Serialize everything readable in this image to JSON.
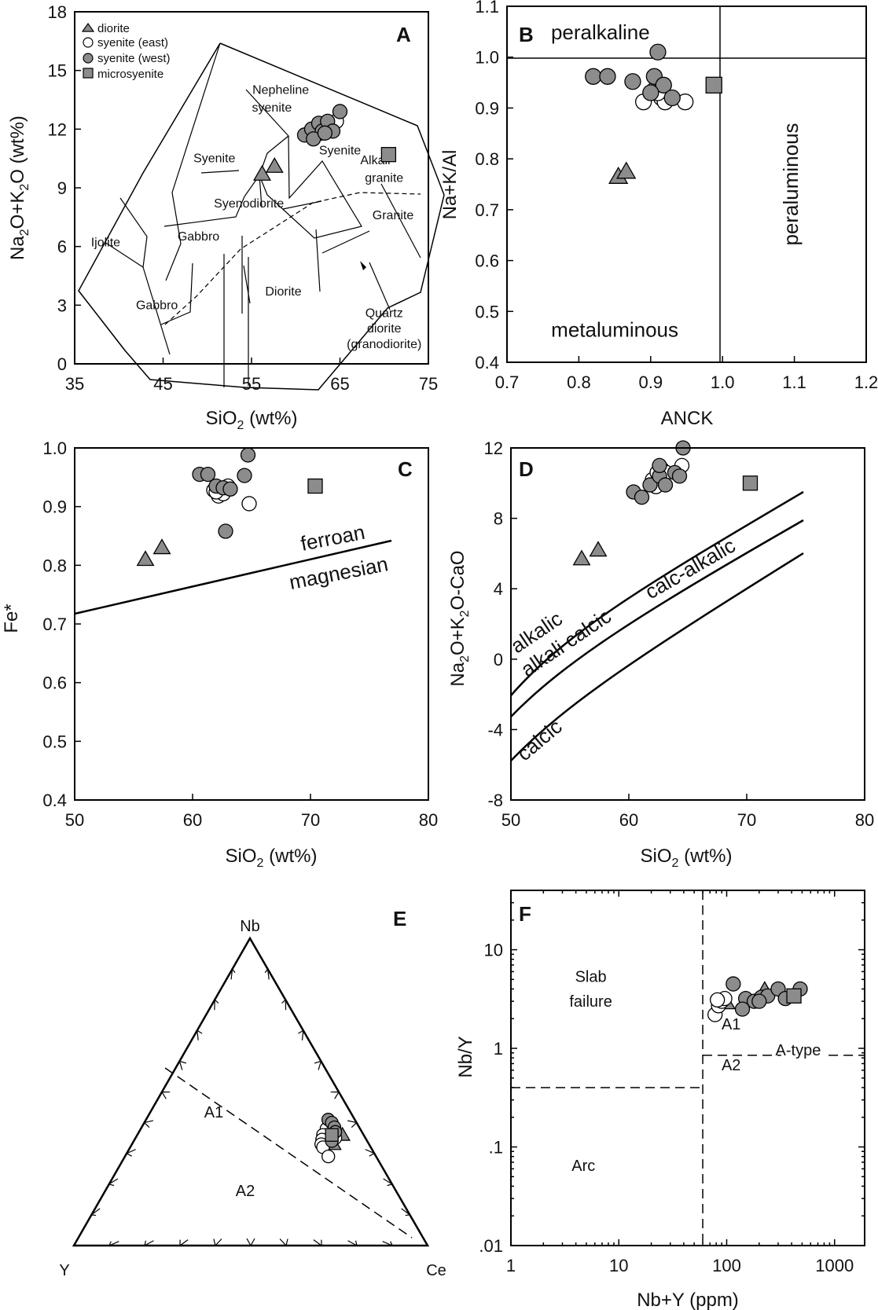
{
  "legend": {
    "entries": [
      {
        "name": "diorite",
        "marker": "triangle",
        "fill": "#8c8c8c"
      },
      {
        "name": "syenite (east)",
        "marker": "circle",
        "fill": "#ffffff"
      },
      {
        "name": "syenite (west)",
        "marker": "circle",
        "fill": "#8c8c8c"
      },
      {
        "name": "microsyenite",
        "marker": "square",
        "fill": "#8c8c8c"
      }
    ]
  },
  "colors": {
    "marker_fill": "#8c8c8c",
    "marker_open": "#ffffff",
    "line": "#000000"
  },
  "chart_data": [
    {
      "panel": "A",
      "type": "scatter",
      "xlabel": "SiO₂ (wt%)",
      "ylabel": "Na₂O+K₂O (wt%)",
      "xlim": [
        35,
        75
      ],
      "ylim": [
        0,
        18
      ],
      "xticks": [
        35,
        45,
        55,
        65,
        75
      ],
      "yticks": [
        0,
        3,
        6,
        9,
        12,
        15,
        18
      ],
      "field_labels": [
        {
          "text": "Ijolite",
          "x": 38.5,
          "y": 6.0
        },
        {
          "text": "Gabbro",
          "x": 44.3,
          "y": 2.8
        },
        {
          "text": "Gabbro",
          "x": 49.0,
          "y": 6.3
        },
        {
          "text": "Syenodiorite",
          "x": 54.7,
          "y": 8.0
        },
        {
          "text": "Syenite",
          "x": 50.8,
          "y": 10.3
        },
        {
          "text": "Nepheline",
          "x": 58.3,
          "y": 13.8
        },
        {
          "text": "syenite",
          "x": 57.3,
          "y": 12.9
        },
        {
          "text": "Syenite",
          "x": 65.0,
          "y": 10.7
        },
        {
          "text": "Alkali",
          "x": 69.0,
          "y": 10.2
        },
        {
          "text": "granite",
          "x": 70.0,
          "y": 9.3
        },
        {
          "text": "Granite",
          "x": 71.0,
          "y": 7.4
        },
        {
          "text": "Diorite",
          "x": 58.6,
          "y": 3.5
        },
        {
          "text": "Quartz",
          "x": 70.0,
          "y": 2.4
        },
        {
          "text": "diorite",
          "x": 70.0,
          "y": 1.6
        },
        {
          "text": "(granodiorite)",
          "x": 70.0,
          "y": 0.8
        }
      ],
      "series": [
        {
          "name": "diorite",
          "x": [
            56.2,
            57.6
          ],
          "y": [
            9.7,
            10.1
          ]
        },
        {
          "name": "syenite (east)",
          "x": [
            62.5,
            63.2,
            64.0,
            64.6,
            62.9
          ],
          "y": [
            11.9,
            12.2,
            12.1,
            12.4,
            11.8
          ]
        },
        {
          "name": "syenite (west)",
          "x": [
            61.0,
            61.8,
            62.6,
            63.0,
            63.6,
            62.0,
            65.0,
            64.2,
            63.3
          ],
          "y": [
            11.7,
            12.0,
            12.3,
            11.9,
            12.4,
            11.5,
            12.9,
            11.9,
            11.8
          ]
        },
        {
          "name": "microsyenite",
          "x": [
            70.5
          ],
          "y": [
            10.7
          ]
        }
      ]
    },
    {
      "panel": "B",
      "type": "scatter",
      "xlabel": "ANCK",
      "ylabel": "Na+K/Al",
      "xlim": [
        0.7,
        1.2
      ],
      "ylim": [
        0.4,
        1.1
      ],
      "xticks": [
        0.7,
        0.8,
        0.9,
        1.0,
        1.1,
        1.2
      ],
      "yticks": [
        0.4,
        0.5,
        0.6,
        0.7,
        0.8,
        0.9,
        1.0,
        1.1
      ],
      "xtick_labels": [
        "0.7",
        "0.8",
        "0.9",
        "1.0",
        "1.1",
        "1.2"
      ],
      "ytick_labels": [
        "0.4",
        "0.5",
        "0.6",
        "0.7",
        "0.8",
        "0.9",
        "1.0",
        "1.1"
      ],
      "field_labels": [
        {
          "text": "peralkaline",
          "x": 0.83,
          "y": 1.035
        },
        {
          "text": "metaluminous",
          "x": 0.85,
          "y": 0.45
        },
        {
          "text": "peraluminous",
          "x": 1.105,
          "y": 0.75,
          "rotate": -90
        }
      ],
      "series": [
        {
          "name": "diorite",
          "x": [
            0.855,
            0.866
          ],
          "y": [
            0.765,
            0.775
          ]
        },
        {
          "name": "syenite (east)",
          "x": [
            0.89,
            0.905,
            0.915,
            0.92,
            0.948,
            0.91
          ],
          "y": [
            0.912,
            0.935,
            0.92,
            0.912,
            0.912,
            0.93
          ]
        },
        {
          "name": "syenite (west)",
          "x": [
            0.82,
            0.84,
            0.875,
            0.905,
            0.91,
            0.918,
            0.93,
            0.9
          ],
          "y": [
            0.962,
            0.962,
            0.952,
            0.962,
            1.01,
            0.945,
            0.92,
            0.93
          ]
        },
        {
          "name": "microsyenite",
          "x": [
            0.988
          ],
          "y": [
            0.945
          ]
        }
      ]
    },
    {
      "panel": "C",
      "type": "scatter",
      "xlabel": "SiO₂ (wt%)",
      "ylabel": "Fe*",
      "xlim": [
        50,
        80
      ],
      "ylim": [
        0.4,
        1.0
      ],
      "xticks": [
        50,
        60,
        70,
        80
      ],
      "yticks": [
        0.4,
        0.5,
        0.6,
        0.7,
        0.8,
        0.9,
        1.0
      ],
      "xtick_labels": [
        "50",
        "60",
        "70",
        "80"
      ],
      "ytick_labels": [
        "0.4",
        "0.5",
        "0.6",
        "0.7",
        "0.8",
        "0.9",
        "1.0"
      ],
      "field_labels": [
        {
          "text": "ferroan",
          "x": 72.0,
          "y": 0.835,
          "rotate": -11
        },
        {
          "text": "magnesian",
          "x": 72.5,
          "y": 0.775,
          "rotate": -11
        }
      ],
      "series": [
        {
          "name": "diorite",
          "x": [
            56.0,
            57.4
          ],
          "y": [
            0.81,
            0.83
          ]
        },
        {
          "name": "syenite (east)",
          "x": [
            61.8,
            62.2,
            62.6,
            63.0,
            64.8,
            62.0
          ],
          "y": [
            0.928,
            0.918,
            0.922,
            0.935,
            0.905,
            0.925
          ]
        },
        {
          "name": "syenite (west)",
          "x": [
            60.6,
            61.3,
            62.0,
            62.6,
            62.8,
            64.4,
            64.7,
            63.2
          ],
          "y": [
            0.955,
            0.955,
            0.935,
            0.932,
            0.858,
            0.953,
            0.988,
            0.93
          ]
        },
        {
          "name": "microsyenite",
          "x": [
            70.4
          ],
          "y": [
            0.935
          ]
        }
      ]
    },
    {
      "panel": "D",
      "type": "scatter",
      "xlabel": "SiO₂ (wt%)",
      "ylabel": "Na₂O+K₂O-CaO",
      "xlim": [
        50,
        80
      ],
      "ylim": [
        -8,
        12
      ],
      "xticks": [
        50,
        60,
        70,
        80
      ],
      "yticks": [
        -8,
        -4,
        0,
        4,
        8,
        12
      ],
      "xtick_labels": [
        "50",
        "60",
        "70",
        "80"
      ],
      "ytick_labels": [
        "-8",
        "-4",
        "0",
        "4",
        "8",
        "12"
      ],
      "field_labels": [
        {
          "text": "alkalic",
          "x": 52.5,
          "y": 1.2,
          "rotate": -34
        },
        {
          "text": "alkali calcic",
          "x": 55.0,
          "y": 0.6,
          "rotate": -34
        },
        {
          "text": "calcic",
          "x": 52.8,
          "y": -4.9,
          "rotate": -40
        },
        {
          "text": "calc-alkalic",
          "x": 65.5,
          "y": 4.8,
          "rotate": -30
        }
      ],
      "series": [
        {
          "name": "diorite",
          "x": [
            56.0,
            57.4
          ],
          "y": [
            5.7,
            6.2
          ]
        },
        {
          "name": "syenite (east)",
          "x": [
            62.0,
            62.4,
            62.8,
            63.2,
            64.5,
            62.3
          ],
          "y": [
            10.2,
            10.6,
            10.8,
            10.6,
            11.0,
            9.8
          ]
        },
        {
          "name": "syenite (west)",
          "x": [
            60.4,
            61.1,
            61.8,
            62.6,
            63.1,
            63.9,
            64.3,
            64.6,
            62.6
          ],
          "y": [
            9.5,
            9.2,
            9.9,
            10.4,
            9.9,
            10.6,
            10.4,
            12.0,
            11.0
          ]
        },
        {
          "name": "microsyenite",
          "x": [
            70.3
          ],
          "y": [
            10.0
          ]
        }
      ]
    },
    {
      "panel": "E",
      "type": "scatter",
      "vertices": [
        "Nb",
        "Y",
        "Ce"
      ],
      "field_labels": [
        {
          "text": "A1"
        },
        {
          "text": "A2"
        }
      ],
      "series": [
        {
          "name": "diorite",
          "Nb": [
            0.33,
            0.36
          ],
          "Ce": [
            0.57,
            0.58
          ]
        },
        {
          "name": "syenite (east)",
          "Nb": [
            0.38,
            0.36,
            0.345,
            0.33,
            0.32,
            0.29,
            0.35
          ],
          "Ce": [
            0.525,
            0.525,
            0.53,
            0.535,
            0.545,
            0.575,
            0.565
          ]
        },
        {
          "name": "syenite (west)",
          "Nb": [
            0.41,
            0.4,
            0.385,
            0.37,
            0.34
          ],
          "Ce": [
            0.515,
            0.53,
            0.545,
            0.555,
            0.56
          ]
        },
        {
          "name": "microsyenite",
          "Nb": [
            0.36
          ],
          "Ce": [
            0.55
          ]
        }
      ]
    },
    {
      "panel": "F",
      "type": "scatter",
      "xlabel": "Nb+Y (ppm)",
      "ylabel": "Nb/Y",
      "xscale": "log",
      "yscale": "log",
      "xlim": [
        1,
        1900
      ],
      "ylim": [
        0.01,
        40
      ],
      "xticks": [
        1,
        10,
        100,
        1000
      ],
      "yticks": [
        0.01,
        0.1,
        1,
        10
      ],
      "xtick_labels": [
        "1",
        "10",
        "100",
        "1000"
      ],
      "ytick_labels": [
        ".01",
        ".1",
        "1",
        "10"
      ],
      "field_labels": [
        {
          "text": "Slab",
          "x": 5.5,
          "y": 4.7
        },
        {
          "text": "failure",
          "x": 5.5,
          "y": 2.65
        },
        {
          "text": "A1",
          "x": 110,
          "y": 1.55
        },
        {
          "text": "A2",
          "x": 110,
          "y": 0.6
        },
        {
          "text": "A-type",
          "x": 460,
          "y": 0.85
        },
        {
          "text": "Arc",
          "x": 4.7,
          "y": 0.057
        }
      ],
      "series": [
        {
          "name": "diorite",
          "x": [
            100,
            225
          ],
          "y": [
            2.9,
            3.9
          ]
        },
        {
          "name": "syenite (east)",
          "x": [
            78,
            84,
            90,
            96,
            82
          ],
          "y": [
            2.2,
            2.7,
            3.0,
            3.2,
            3.1
          ]
        },
        {
          "name": "syenite (west)",
          "x": [
            115,
            150,
            180,
            210,
            240,
            300,
            350,
            480,
            140,
            200
          ],
          "y": [
            4.5,
            3.2,
            3.0,
            3.3,
            3.4,
            4.0,
            3.2,
            4.0,
            2.5,
            3.0
          ]
        },
        {
          "name": "microsyenite",
          "x": [
            420
          ],
          "y": [
            3.4
          ]
        }
      ]
    }
  ]
}
